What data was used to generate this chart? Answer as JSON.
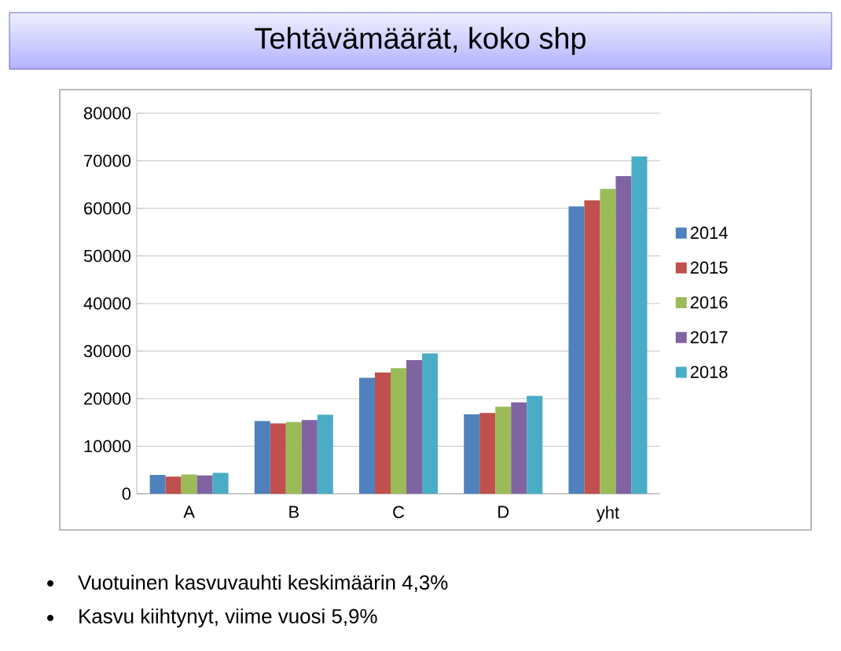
{
  "chart_data": {
    "type": "bar",
    "title": "Tehtävämäärät, koko shp",
    "categories": [
      "A",
      "B",
      "C",
      "D",
      "yht"
    ],
    "series": [
      {
        "name": "2014",
        "color": "#4f81bd",
        "values": [
          3950,
          15300,
          24400,
          16700,
          60400
        ]
      },
      {
        "name": "2015",
        "color": "#c0504d",
        "values": [
          3600,
          14800,
          25500,
          17000,
          61700
        ]
      },
      {
        "name": "2016",
        "color": "#9bbb59",
        "values": [
          4050,
          15100,
          26400,
          18300,
          64100
        ]
      },
      {
        "name": "2017",
        "color": "#8064a2",
        "values": [
          3850,
          15500,
          28100,
          19200,
          66800
        ]
      },
      {
        "name": "2018",
        "color": "#4bacc6",
        "values": [
          4400,
          16600,
          29500,
          20600,
          70900
        ]
      }
    ],
    "ylim": [
      0,
      80000
    ],
    "yticks": [
      0,
      10000,
      20000,
      30000,
      40000,
      50000,
      60000,
      70000,
      80000
    ],
    "grid": "y",
    "legend": "right",
    "annotations": [
      "Vuotuinen kasvuvauhti keskimäärin 4,3%",
      "Kasvu kiihtynyt, viime vuosi 5,9%"
    ]
  }
}
